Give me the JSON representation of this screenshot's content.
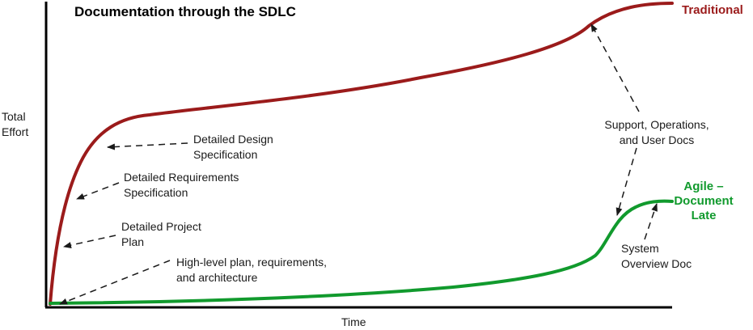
{
  "title": "Documentation through the SDLC",
  "y_axis_label": "Total\nEffort",
  "x_axis_label": "Time",
  "curves": {
    "traditional": {
      "label": "Traditional",
      "color": "#9b1b1b"
    },
    "agile": {
      "label": "Agile –\nDocument\nLate",
      "color": "#119a2d"
    }
  },
  "annotations": {
    "detailed_design": "Detailed Design\nSpecification",
    "detailed_requirements": "Detailed Requirements\nSpecification",
    "detailed_project_plan": "Detailed Project\nPlan",
    "high_level": "High-level plan, requirements,\nand architecture",
    "support_docs": "Support, Operations,\nand User Docs",
    "system_overview": "System\nOverview Doc"
  }
}
